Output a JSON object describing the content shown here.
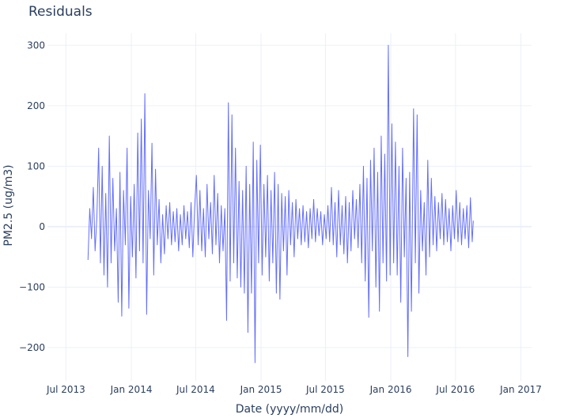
{
  "chart_data": {
    "type": "line",
    "title": "Residuals",
    "xlabel": "Date (yyyy/mm/dd)",
    "ylabel": "PM2.5 (ug/m3)",
    "x_range": [
      "2013-05-10",
      "2017-01-31"
    ],
    "ylim": [
      -255,
      320
    ],
    "x_ticks": [
      {
        "date": "2013-07-01",
        "label": "Jul 2013"
      },
      {
        "date": "2014-01-01",
        "label": "Jan 2014"
      },
      {
        "date": "2014-07-01",
        "label": "Jul 2014"
      },
      {
        "date": "2015-01-01",
        "label": "Jan 2015"
      },
      {
        "date": "2015-07-01",
        "label": "Jul 2015"
      },
      {
        "date": "2016-01-01",
        "label": "Jan 2016"
      },
      {
        "date": "2016-07-01",
        "label": "Jul 2016"
      },
      {
        "date": "2017-01-01",
        "label": "Jan 2017"
      }
    ],
    "y_ticks": [
      {
        "value": 300,
        "label": "300"
      },
      {
        "value": 200,
        "label": "200"
      },
      {
        "value": 100,
        "label": "100"
      },
      {
        "value": 0,
        "label": "0"
      },
      {
        "value": -100,
        "label": "−100"
      },
      {
        "value": -200,
        "label": "−200"
      }
    ],
    "grid": true,
    "series": [
      {
        "color": "#636efa",
        "points": [
          [
            "2013-09-01",
            -55
          ],
          [
            "2013-09-06",
            30
          ],
          [
            "2013-09-11",
            -20
          ],
          [
            "2013-09-16",
            65
          ],
          [
            "2013-09-21",
            -40
          ],
          [
            "2013-09-26",
            15
          ],
          [
            "2013-10-01",
            130
          ],
          [
            "2013-10-06",
            -60
          ],
          [
            "2013-10-11",
            100
          ],
          [
            "2013-10-16",
            -80
          ],
          [
            "2013-10-21",
            55
          ],
          [
            "2013-10-26",
            -100
          ],
          [
            "2013-10-31",
            150
          ],
          [
            "2013-11-05",
            -60
          ],
          [
            "2013-11-10",
            80
          ],
          [
            "2013-11-15",
            -40
          ],
          [
            "2013-11-20",
            30
          ],
          [
            "2013-11-25",
            -125
          ],
          [
            "2013-11-30",
            90
          ],
          [
            "2013-12-05",
            -148
          ],
          [
            "2013-12-10",
            60
          ],
          [
            "2013-12-15",
            -30
          ],
          [
            "2013-12-20",
            130
          ],
          [
            "2013-12-25",
            -135
          ],
          [
            "2013-12-30",
            50
          ],
          [
            "2014-01-04",
            -50
          ],
          [
            "2014-01-09",
            70
          ],
          [
            "2014-01-14",
            -85
          ],
          [
            "2014-01-19",
            155
          ],
          [
            "2014-01-24",
            -40
          ],
          [
            "2014-01-29",
            178
          ],
          [
            "2014-02-03",
            -60
          ],
          [
            "2014-02-08",
            220
          ],
          [
            "2014-02-13",
            -145
          ],
          [
            "2014-02-18",
            60
          ],
          [
            "2014-02-23",
            -20
          ],
          [
            "2014-02-28",
            138
          ],
          [
            "2014-03-05",
            -80
          ],
          [
            "2014-03-10",
            95
          ],
          [
            "2014-03-15",
            -30
          ],
          [
            "2014-03-20",
            45
          ],
          [
            "2014-03-25",
            -60
          ],
          [
            "2014-03-30",
            20
          ],
          [
            "2014-04-04",
            -45
          ],
          [
            "2014-04-09",
            35
          ],
          [
            "2014-04-14",
            -20
          ],
          [
            "2014-04-19",
            40
          ],
          [
            "2014-04-24",
            -30
          ],
          [
            "2014-04-29",
            25
          ],
          [
            "2014-05-04",
            -25
          ],
          [
            "2014-05-09",
            30
          ],
          [
            "2014-05-14",
            -40
          ],
          [
            "2014-05-19",
            20
          ],
          [
            "2014-05-24",
            -30
          ],
          [
            "2014-05-29",
            35
          ],
          [
            "2014-06-03",
            -20
          ],
          [
            "2014-06-08",
            25
          ],
          [
            "2014-06-13",
            -35
          ],
          [
            "2014-06-18",
            40
          ],
          [
            "2014-06-23",
            -50
          ],
          [
            "2014-06-28",
            30
          ],
          [
            "2014-07-03",
            85
          ],
          [
            "2014-07-08",
            -30
          ],
          [
            "2014-07-13",
            60
          ],
          [
            "2014-07-18",
            -40
          ],
          [
            "2014-07-23",
            30
          ],
          [
            "2014-07-28",
            -50
          ],
          [
            "2014-08-02",
            70
          ],
          [
            "2014-08-07",
            -20
          ],
          [
            "2014-08-12",
            40
          ],
          [
            "2014-08-17",
            -45
          ],
          [
            "2014-08-22",
            85
          ],
          [
            "2014-08-27",
            -30
          ],
          [
            "2014-09-01",
            55
          ],
          [
            "2014-09-06",
            -60
          ],
          [
            "2014-09-11",
            35
          ],
          [
            "2014-09-16",
            -40
          ],
          [
            "2014-09-21",
            30
          ],
          [
            "2014-09-26",
            -155
          ],
          [
            "2014-10-01",
            205
          ],
          [
            "2014-10-06",
            -90
          ],
          [
            "2014-10-11",
            185
          ],
          [
            "2014-10-16",
            -60
          ],
          [
            "2014-10-21",
            130
          ],
          [
            "2014-10-26",
            -85
          ],
          [
            "2014-10-31",
            75
          ],
          [
            "2014-11-05",
            -100
          ],
          [
            "2014-11-10",
            60
          ],
          [
            "2014-11-15",
            -110
          ],
          [
            "2014-11-20",
            100
          ],
          [
            "2014-11-25",
            -175
          ],
          [
            "2014-11-30",
            70
          ],
          [
            "2014-12-05",
            -110
          ],
          [
            "2014-12-10",
            140
          ],
          [
            "2014-12-15",
            -225
          ],
          [
            "2014-12-20",
            110
          ],
          [
            "2014-12-25",
            -60
          ],
          [
            "2014-12-30",
            135
          ],
          [
            "2015-01-04",
            -80
          ],
          [
            "2015-01-09",
            70
          ],
          [
            "2015-01-14",
            -50
          ],
          [
            "2015-01-19",
            85
          ],
          [
            "2015-01-24",
            -90
          ],
          [
            "2015-01-29",
            60
          ],
          [
            "2015-02-03",
            -60
          ],
          [
            "2015-02-08",
            90
          ],
          [
            "2015-02-13",
            -110
          ],
          [
            "2015-02-18",
            70
          ],
          [
            "2015-02-23",
            -120
          ],
          [
            "2015-02-28",
            55
          ],
          [
            "2015-03-05",
            -40
          ],
          [
            "2015-03-10",
            50
          ],
          [
            "2015-03-15",
            -80
          ],
          [
            "2015-03-20",
            60
          ],
          [
            "2015-03-25",
            -30
          ],
          [
            "2015-03-30",
            40
          ],
          [
            "2015-04-04",
            -50
          ],
          [
            "2015-04-09",
            45
          ],
          [
            "2015-04-14",
            -20
          ],
          [
            "2015-04-19",
            30
          ],
          [
            "2015-04-24",
            -30
          ],
          [
            "2015-04-29",
            35
          ],
          [
            "2015-05-04",
            -25
          ],
          [
            "2015-05-09",
            25
          ],
          [
            "2015-05-14",
            -35
          ],
          [
            "2015-05-19",
            30
          ],
          [
            "2015-05-24",
            -20
          ],
          [
            "2015-05-29",
            45
          ],
          [
            "2015-06-03",
            -25
          ],
          [
            "2015-06-08",
            30
          ],
          [
            "2015-06-13",
            -15
          ],
          [
            "2015-06-18",
            25
          ],
          [
            "2015-06-23",
            -30
          ],
          [
            "2015-06-28",
            20
          ],
          [
            "2015-07-03",
            -20
          ],
          [
            "2015-07-08",
            35
          ],
          [
            "2015-07-13",
            -25
          ],
          [
            "2015-07-18",
            65
          ],
          [
            "2015-07-23",
            -30
          ],
          [
            "2015-07-28",
            40
          ],
          [
            "2015-08-02",
            -50
          ],
          [
            "2015-08-07",
            60
          ],
          [
            "2015-08-12",
            -30
          ],
          [
            "2015-08-17",
            35
          ],
          [
            "2015-08-22",
            -45
          ],
          [
            "2015-08-27",
            50
          ],
          [
            "2015-09-01",
            -60
          ],
          [
            "2015-09-06",
            40
          ],
          [
            "2015-09-11",
            -40
          ],
          [
            "2015-09-16",
            60
          ],
          [
            "2015-09-21",
            -20
          ],
          [
            "2015-09-26",
            45
          ],
          [
            "2015-10-01",
            -35
          ],
          [
            "2015-10-06",
            70
          ],
          [
            "2015-10-11",
            -60
          ],
          [
            "2015-10-16",
            100
          ],
          [
            "2015-10-21",
            -90
          ],
          [
            "2015-10-26",
            80
          ],
          [
            "2015-10-31",
            -150
          ],
          [
            "2015-11-05",
            110
          ],
          [
            "2015-11-10",
            -40
          ],
          [
            "2015-11-15",
            130
          ],
          [
            "2015-11-20",
            -100
          ],
          [
            "2015-11-25",
            90
          ],
          [
            "2015-11-30",
            -140
          ],
          [
            "2015-12-05",
            150
          ],
          [
            "2015-12-10",
            -60
          ],
          [
            "2015-12-15",
            120
          ],
          [
            "2015-12-20",
            -90
          ],
          [
            "2015-12-25",
            300
          ],
          [
            "2015-12-30",
            -80
          ],
          [
            "2016-01-04",
            170
          ],
          [
            "2016-01-09",
            -60
          ],
          [
            "2016-01-14",
            140
          ],
          [
            "2016-01-19",
            -80
          ],
          [
            "2016-01-24",
            100
          ],
          [
            "2016-01-29",
            -125
          ],
          [
            "2016-02-03",
            130
          ],
          [
            "2016-02-08",
            -50
          ],
          [
            "2016-02-13",
            80
          ],
          [
            "2016-02-18",
            -215
          ],
          [
            "2016-02-23",
            90
          ],
          [
            "2016-02-28",
            -140
          ],
          [
            "2016-03-05",
            195
          ],
          [
            "2016-03-10",
            -60
          ],
          [
            "2016-03-15",
            185
          ],
          [
            "2016-03-20",
            -110
          ],
          [
            "2016-03-25",
            60
          ],
          [
            "2016-03-30",
            -40
          ],
          [
            "2016-04-04",
            40
          ],
          [
            "2016-04-09",
            -80
          ],
          [
            "2016-04-14",
            110
          ],
          [
            "2016-04-19",
            -50
          ],
          [
            "2016-04-24",
            80
          ],
          [
            "2016-04-29",
            -30
          ],
          [
            "2016-05-04",
            50
          ],
          [
            "2016-05-09",
            -40
          ],
          [
            "2016-05-14",
            40
          ],
          [
            "2016-05-19",
            -20
          ],
          [
            "2016-05-24",
            55
          ],
          [
            "2016-05-29",
            -30
          ],
          [
            "2016-06-03",
            45
          ],
          [
            "2016-06-08",
            -25
          ],
          [
            "2016-06-13",
            30
          ],
          [
            "2016-06-18",
            -40
          ],
          [
            "2016-06-23",
            35
          ],
          [
            "2016-06-28",
            -20
          ],
          [
            "2016-07-03",
            60
          ],
          [
            "2016-07-08",
            -25
          ],
          [
            "2016-07-13",
            40
          ],
          [
            "2016-07-18",
            -30
          ],
          [
            "2016-07-23",
            30
          ],
          [
            "2016-07-28",
            -20
          ],
          [
            "2016-08-02",
            35
          ],
          [
            "2016-08-07",
            -35
          ],
          [
            "2016-08-12",
            48
          ],
          [
            "2016-08-17",
            -25
          ],
          [
            "2016-08-20",
            10
          ]
        ]
      }
    ]
  }
}
